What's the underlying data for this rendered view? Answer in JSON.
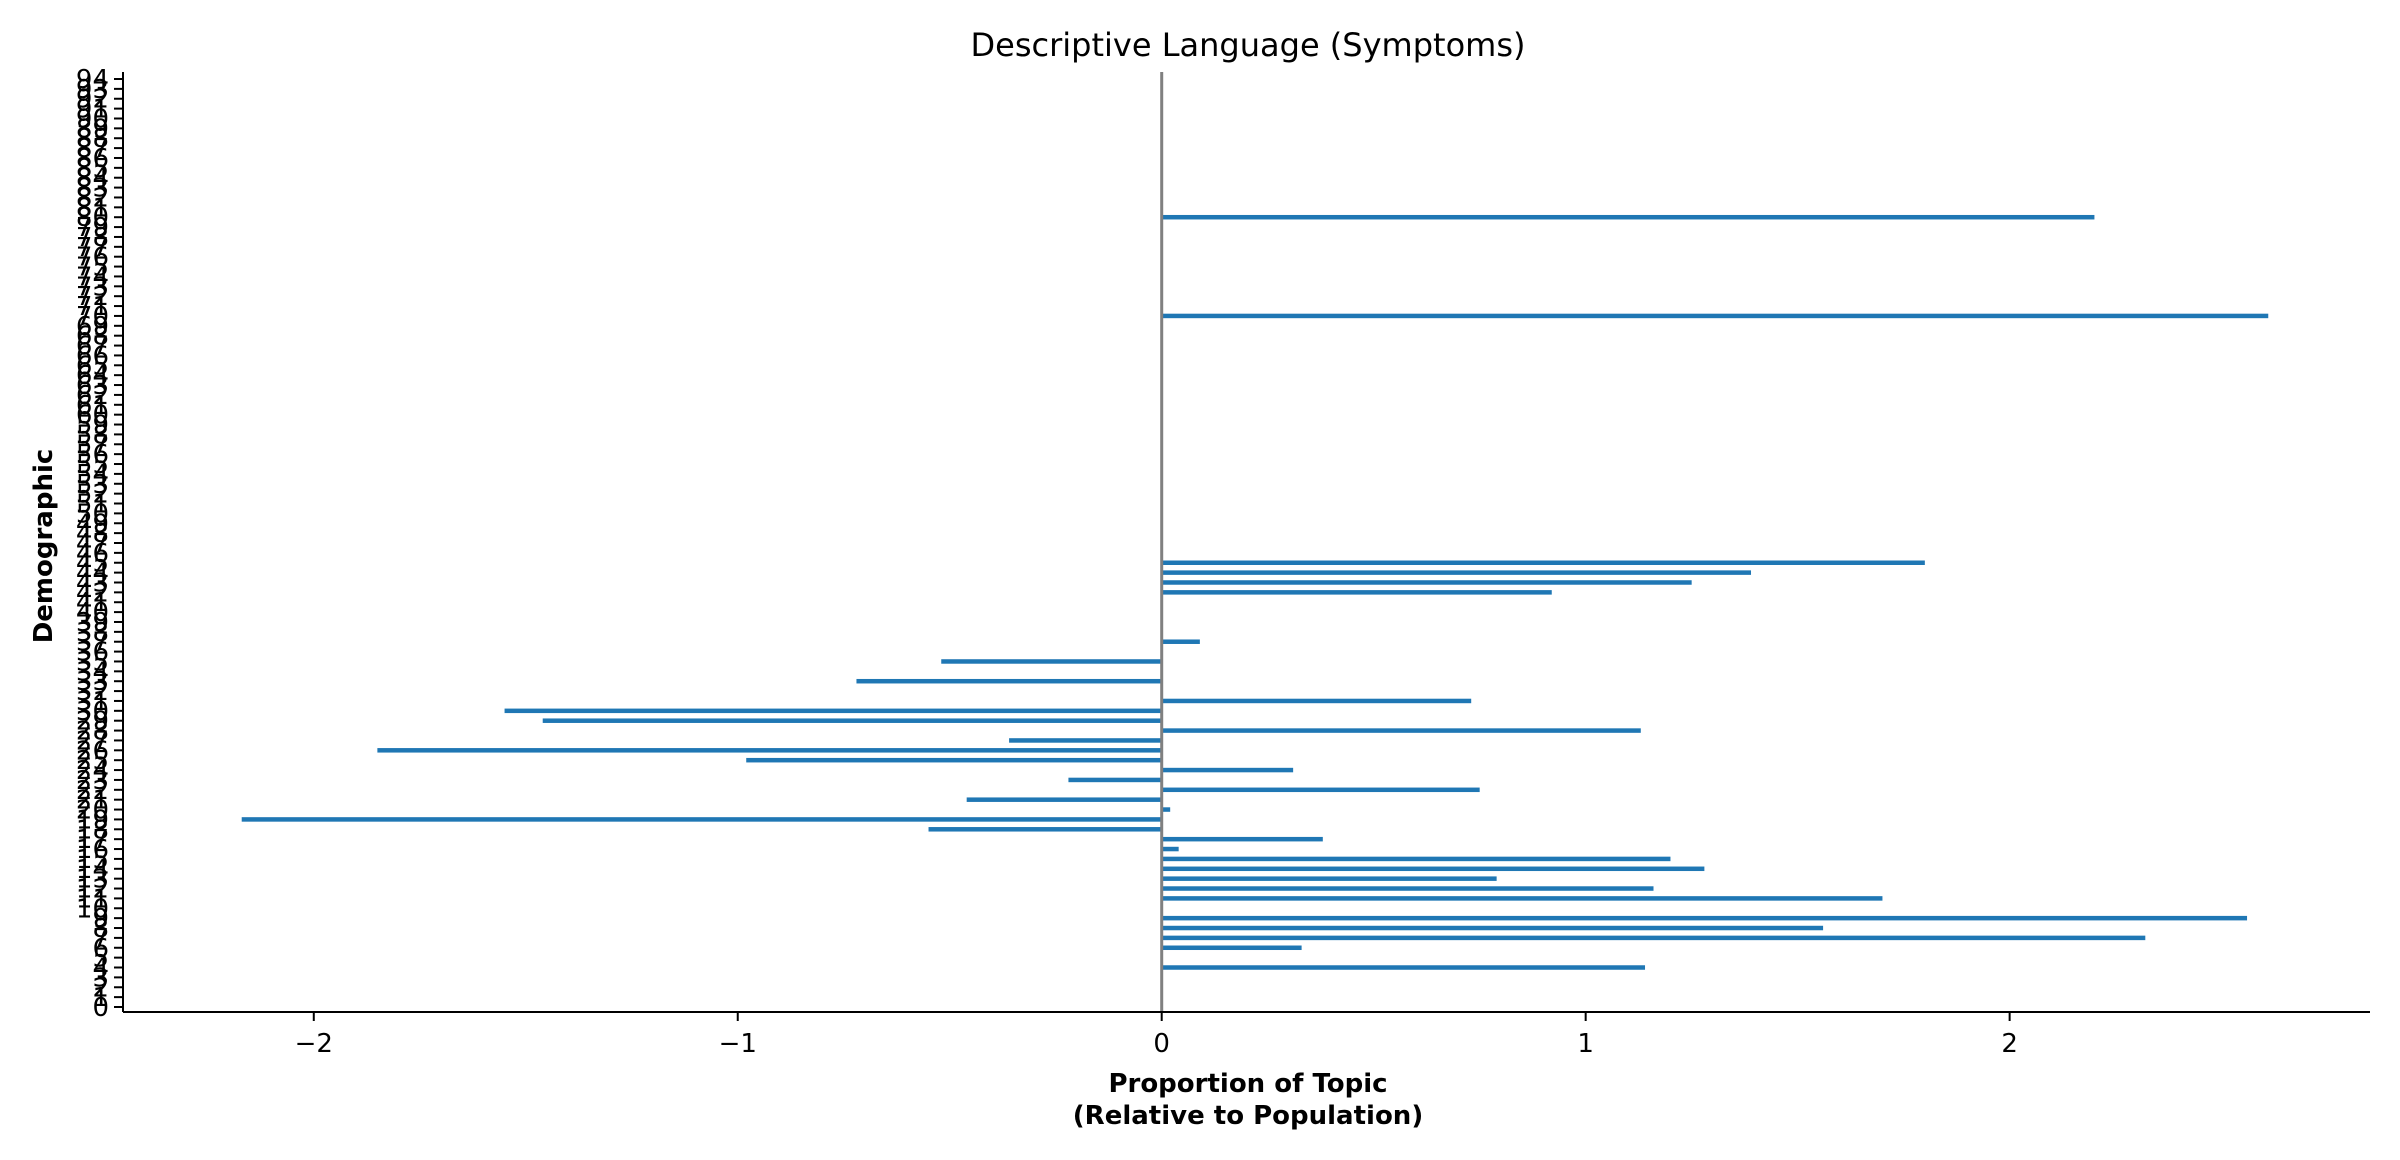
{
  "chart_data": {
    "type": "bar",
    "orientation": "horizontal",
    "title": "Descriptive Language (Symptoms)",
    "xlabel_lines": [
      "Proportion of Topic",
      "(Relative to Population)"
    ],
    "ylabel": "Demographic",
    "xlim": [
      -2.45,
      2.85
    ],
    "ylim": [
      0,
      94
    ],
    "x_ticks": [
      -2,
      -1,
      0,
      1,
      2
    ],
    "x_tick_labels": [
      "−2",
      "−1",
      "0",
      "1",
      "2"
    ],
    "y_ticks": [
      0,
      1,
      2,
      3,
      4,
      5,
      6,
      7,
      8,
      9,
      10,
      11,
      12,
      13,
      14,
      15,
      16,
      17,
      18,
      19,
      20,
      21,
      22,
      23,
      24,
      25,
      26,
      27,
      28,
      29,
      30,
      31,
      32,
      33,
      34,
      35,
      36,
      37,
      38,
      39,
      40,
      41,
      42,
      43,
      44,
      45,
      46,
      47,
      48,
      49,
      50,
      51,
      52,
      53,
      54,
      55,
      56,
      57,
      58,
      59,
      60,
      61,
      62,
      63,
      64,
      65,
      66,
      67,
      68,
      69,
      70,
      71,
      72,
      73,
      74,
      75,
      76,
      77,
      78,
      79,
      80,
      81,
      82,
      83,
      84,
      85,
      86,
      87,
      88,
      89,
      90,
      91,
      92,
      93,
      94
    ],
    "color": "#1f77b4",
    "zero_line_color": "#808080",
    "grid": false,
    "bars": [
      {
        "y": 4,
        "value": 1.14
      },
      {
        "y": 6,
        "value": 0.33
      },
      {
        "y": 7,
        "value": 2.32
      },
      {
        "y": 8,
        "value": 1.56
      },
      {
        "y": 9,
        "value": 2.56
      },
      {
        "y": 11,
        "value": 1.7
      },
      {
        "y": 12,
        "value": 1.16
      },
      {
        "y": 13,
        "value": 0.79
      },
      {
        "y": 14,
        "value": 1.28
      },
      {
        "y": 15,
        "value": 1.2
      },
      {
        "y": 16,
        "value": 0.04
      },
      {
        "y": 17,
        "value": 0.38
      },
      {
        "y": 18,
        "value": -0.55
      },
      {
        "y": 19,
        "value": -2.17
      },
      {
        "y": 20,
        "value": 0.02
      },
      {
        "y": 21,
        "value": -0.46
      },
      {
        "y": 22,
        "value": 0.75
      },
      {
        "y": 23,
        "value": -0.22
      },
      {
        "y": 24,
        "value": 0.31
      },
      {
        "y": 25,
        "value": -0.98
      },
      {
        "y": 26,
        "value": -1.85
      },
      {
        "y": 27,
        "value": -0.36
      },
      {
        "y": 28,
        "value": 1.13
      },
      {
        "y": 29,
        "value": -1.46
      },
      {
        "y": 30,
        "value": -1.55
      },
      {
        "y": 31,
        "value": 0.73
      },
      {
        "y": 33,
        "value": -0.72
      },
      {
        "y": 35,
        "value": -0.52
      },
      {
        "y": 37,
        "value": 0.09
      },
      {
        "y": 42,
        "value": 0.92
      },
      {
        "y": 43,
        "value": 1.25
      },
      {
        "y": 44,
        "value": 1.39
      },
      {
        "y": 45,
        "value": 1.8
      },
      {
        "y": 70,
        "value": 2.61
      },
      {
        "y": 80,
        "value": 2.2
      }
    ]
  }
}
